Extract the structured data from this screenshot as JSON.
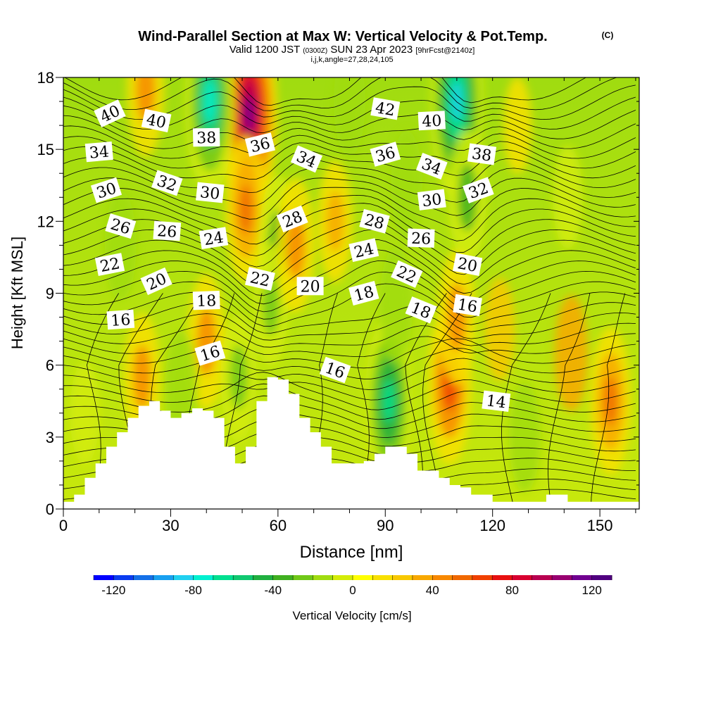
{
  "title": {
    "main": "Wind-Parallel Section at Max W: Vertical Velocity & Pot.Temp.",
    "copyright": "(C)",
    "valid_prefix": "Valid 1200 JST",
    "valid_utc": "(0300Z)",
    "valid_date": "SUN 23 Apr 2023",
    "forecast": "[9hrFcst@2140z]",
    "indices": "i,j,k,angle=27,28,24,105"
  },
  "chart_data": {
    "type": "heatmap",
    "title": "Wind-Parallel Section at Max W: Vertical Velocity & Pot.Temp.",
    "xlabel": "Distance [nm]",
    "ylabel": "Height [Kft MSL]",
    "xlim": [
      0,
      161
    ],
    "ylim": [
      0,
      18
    ],
    "x_ticks": [
      "0",
      "30",
      "60",
      "90",
      "120",
      "150"
    ],
    "y_ticks": [
      "0",
      "3",
      "6",
      "9",
      "12",
      "15",
      "18"
    ],
    "grid": false,
    "colorbar": {
      "label": "Vertical Velocity [cm/s]",
      "ticks": [
        "-120",
        "-80",
        "-40",
        "0",
        "40",
        "80",
        "120"
      ],
      "range": [
        -130,
        130
      ],
      "step": 10,
      "colors": [
        "#0000ff",
        "#0a3cf0",
        "#1470e8",
        "#18a0f0",
        "#20d0f0",
        "#00f0d0",
        "#00e090",
        "#10c870",
        "#20b040",
        "#40b020",
        "#70c818",
        "#a0dc10",
        "#d4ec08",
        "#ffff00",
        "#f8e000",
        "#f8c800",
        "#f8a800",
        "#f88800",
        "#f06800",
        "#f04000",
        "#e81010",
        "#d80030",
        "#b80050",
        "#980070",
        "#700090",
        "#500080"
      ]
    },
    "terrain_kft": [
      [
        0,
        0.3
      ],
      [
        3,
        0.6
      ],
      [
        6,
        1.3
      ],
      [
        9,
        1.9
      ],
      [
        12,
        2.6
      ],
      [
        15,
        3.2
      ],
      [
        18,
        3.8
      ],
      [
        21,
        4.3
      ],
      [
        24,
        4.5
      ],
      [
        27,
        4.1
      ],
      [
        30,
        3.8
      ],
      [
        33,
        4.0
      ],
      [
        36,
        4.2
      ],
      [
        39,
        4.1
      ],
      [
        42,
        3.8
      ],
      [
        45,
        2.6
      ],
      [
        48,
        1.9
      ],
      [
        51,
        2.6
      ],
      [
        54,
        4.5
      ],
      [
        57,
        5.5
      ],
      [
        60,
        5.4
      ],
      [
        63,
        4.8
      ],
      [
        66,
        3.8
      ],
      [
        69,
        3.2
      ],
      [
        72,
        2.6
      ],
      [
        75,
        1.9
      ],
      [
        78,
        1.9
      ],
      [
        81,
        1.9
      ],
      [
        84,
        2.0
      ],
      [
        87,
        2.3
      ],
      [
        90,
        2.6
      ],
      [
        93,
        2.6
      ],
      [
        96,
        2.3
      ],
      [
        99,
        1.6
      ],
      [
        102,
        1.6
      ],
      [
        105,
        1.3
      ],
      [
        108,
        1.0
      ],
      [
        111,
        0.9
      ],
      [
        114,
        0.6
      ],
      [
        117,
        0.6
      ],
      [
        120,
        0.3
      ],
      [
        126,
        0.3
      ],
      [
        132,
        0.3
      ],
      [
        135,
        0.6
      ],
      [
        138,
        0.6
      ],
      [
        141,
        0.3
      ],
      [
        147,
        0.3
      ],
      [
        153,
        0.3
      ],
      [
        161,
        0.3
      ]
    ],
    "vertical_velocity_cells": [
      {
        "x": 52,
        "y": 16.5,
        "value": 110
      },
      {
        "x": 51,
        "y": 12.5,
        "value": 50
      },
      {
        "x": 41,
        "y": 17.0,
        "value": -80
      },
      {
        "x": 110,
        "y": 17.0,
        "value": -90
      },
      {
        "x": 113,
        "y": 13.0,
        "value": -40
      },
      {
        "x": 60,
        "y": 11.0,
        "value": -45
      },
      {
        "x": 58,
        "y": 8.5,
        "value": -30
      },
      {
        "x": 65,
        "y": 11.0,
        "value": 40
      },
      {
        "x": 76,
        "y": 12.0,
        "value": 30
      },
      {
        "x": 91,
        "y": 4.5,
        "value": -70
      },
      {
        "x": 93,
        "y": 8.5,
        "value": -25
      },
      {
        "x": 108,
        "y": 5.2,
        "value": 60
      },
      {
        "x": 110,
        "y": 8.0,
        "value": 40
      },
      {
        "x": 40,
        "y": 7.0,
        "value": 40
      },
      {
        "x": 22,
        "y": 5.5,
        "value": 35
      },
      {
        "x": 153,
        "y": 4.5,
        "value": 50
      },
      {
        "x": 142,
        "y": 6.5,
        "value": 25
      },
      {
        "x": 49,
        "y": 5.5,
        "value": -35
      },
      {
        "x": 33,
        "y": 5.0,
        "value": -25
      },
      {
        "x": 16,
        "y": 11.0,
        "value": -20
      },
      {
        "x": 129,
        "y": 3.0,
        "value": -20
      },
      {
        "x": 122,
        "y": 7.5,
        "value": 15
      },
      {
        "x": 141,
        "y": 13.0,
        "value": -15
      },
      {
        "x": 6,
        "y": 4.0,
        "value": -15
      },
      {
        "x": 23,
        "y": 17.5,
        "value": 40
      },
      {
        "x": 80,
        "y": 17.0,
        "value": -20
      },
      {
        "x": 96,
        "y": 13.5,
        "value": -20
      },
      {
        "x": 127,
        "y": 16.0,
        "value": 10
      }
    ],
    "potential_temperature": {
      "min": 14,
      "max": 42,
      "interval": 1,
      "label_interval": 2,
      "labels": [
        {
          "value": "40",
          "x": 13,
          "y": 16.5
        },
        {
          "value": "40",
          "x": 26,
          "y": 16.2
        },
        {
          "value": "38",
          "x": 40,
          "y": 15.5
        },
        {
          "value": "36",
          "x": 55,
          "y": 15.2
        },
        {
          "value": "34",
          "x": 68,
          "y": 14.6
        },
        {
          "value": "42",
          "x": 90,
          "y": 16.7
        },
        {
          "value": "40",
          "x": 103,
          "y": 16.2
        },
        {
          "value": "36",
          "x": 90,
          "y": 14.8
        },
        {
          "value": "34",
          "x": 103,
          "y": 14.3
        },
        {
          "value": "38",
          "x": 117,
          "y": 14.8
        },
        {
          "value": "34",
          "x": 10,
          "y": 14.9
        },
        {
          "value": "30",
          "x": 12,
          "y": 13.3
        },
        {
          "value": "32",
          "x": 29,
          "y": 13.6
        },
        {
          "value": "30",
          "x": 41,
          "y": 13.2
        },
        {
          "value": "30",
          "x": 103,
          "y": 12.9
        },
        {
          "value": "32",
          "x": 116,
          "y": 13.3
        },
        {
          "value": "26",
          "x": 16,
          "y": 11.8
        },
        {
          "value": "26",
          "x": 29,
          "y": 11.6
        },
        {
          "value": "24",
          "x": 42,
          "y": 11.3
        },
        {
          "value": "28",
          "x": 64,
          "y": 12.1
        },
        {
          "value": "28",
          "x": 87,
          "y": 12.0
        },
        {
          "value": "26",
          "x": 100,
          "y": 11.3
        },
        {
          "value": "22",
          "x": 13,
          "y": 10.2
        },
        {
          "value": "20",
          "x": 26,
          "y": 9.5
        },
        {
          "value": "22",
          "x": 55,
          "y": 9.6
        },
        {
          "value": "20",
          "x": 69,
          "y": 9.3
        },
        {
          "value": "24",
          "x": 84,
          "y": 10.8
        },
        {
          "value": "22",
          "x": 96,
          "y": 9.8
        },
        {
          "value": "20",
          "x": 113,
          "y": 10.2
        },
        {
          "value": "18",
          "x": 40,
          "y": 8.7
        },
        {
          "value": "18",
          "x": 84,
          "y": 9.0
        },
        {
          "value": "18",
          "x": 100,
          "y": 8.3
        },
        {
          "value": "16",
          "x": 113,
          "y": 8.5
        },
        {
          "value": "16",
          "x": 16,
          "y": 7.9
        },
        {
          "value": "16",
          "x": 41,
          "y": 6.5
        },
        {
          "value": "16",
          "x": 76,
          "y": 5.8
        },
        {
          "value": "14",
          "x": 121,
          "y": 4.5
        }
      ]
    }
  }
}
